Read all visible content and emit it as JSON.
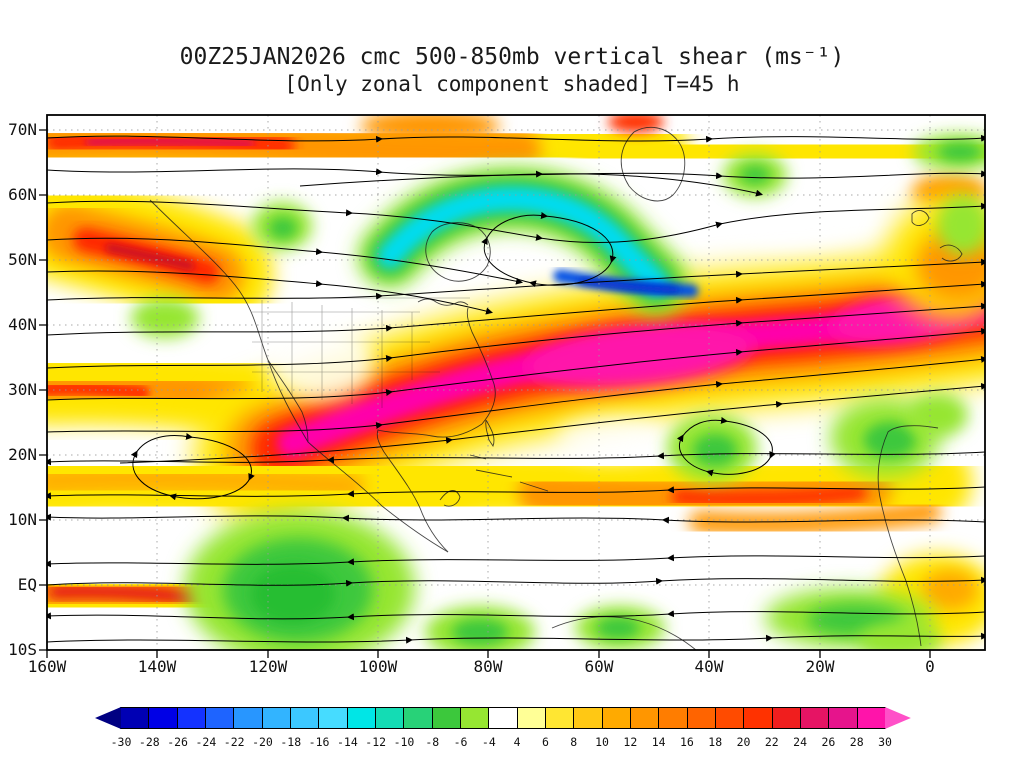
{
  "header": {
    "title": "00Z25JAN2026 cmc 500-850mb vertical shear (ms⁻¹)",
    "subtitle": "[Only zonal component shaded] T=45 h"
  },
  "axes": {
    "lat_ticks": [
      "70N",
      "60N",
      "50N",
      "40N",
      "30N",
      "20N",
      "10N",
      "EQ",
      "10S"
    ],
    "lon_ticks": [
      "160W",
      "140W",
      "120W",
      "100W",
      "80W",
      "60W",
      "40W",
      "20W",
      "0"
    ]
  },
  "colorbar": {
    "tick_labels": [
      "-30",
      "-28",
      "-26",
      "-24",
      "-22",
      "-20",
      "-18",
      "-16",
      "-14",
      "-12",
      "-10",
      "-8",
      "-6",
      "-4",
      "4",
      "6",
      "8",
      "10",
      "12",
      "14",
      "16",
      "18",
      "20",
      "22",
      "24",
      "26",
      "28",
      "30"
    ],
    "colors": [
      "#000082",
      "#0000b4",
      "#0000e6",
      "#1432ff",
      "#1e64ff",
      "#2896ff",
      "#32b4ff",
      "#3cc8ff",
      "#46dcff",
      "#00e6e6",
      "#14dcb4",
      "#28d278",
      "#3cc83c",
      "#96e632",
      "#ffffff",
      "#ffff96",
      "#ffe632",
      "#ffc814",
      "#ffaa00",
      "#ff9600",
      "#ff7d00",
      "#ff6400",
      "#ff4b00",
      "#ff3200",
      "#f01e1e",
      "#e61464",
      "#e6148c",
      "#ff14aa",
      "#ff50c8"
    ]
  },
  "chart_data": {
    "type": "heatmap",
    "title": "00Z25JAN2026 cmc 500-850mb vertical shear (ms⁻¹)",
    "subtitle": "[Only zonal component shaded] T=45 h",
    "model": "cmc",
    "valid_time": "00Z25JAN2026",
    "forecast_hour_h": 45,
    "layer": "500-850mb",
    "variable": "vertical shear (only zonal component shaded)",
    "units": "ms⁻¹",
    "lon_range": [
      "160W",
      "10E"
    ],
    "lat_range": [
      "10S",
      "72N"
    ],
    "shade_step": 2,
    "shade_min": -30,
    "shade_max": 30,
    "unshaded_band": [
      -4,
      4
    ],
    "overlays": [
      "streamlines with arrowheads",
      "coastlines",
      "dotted lat-lon grid"
    ],
    "features": [
      {
        "region": "Subtropical jet from Gulf of Mexico across Atlantic (25N-40N, 100W-0)",
        "shear_ms": "24 to >30"
      },
      {
        "region": "Arctic band along 70N (160W-110W)",
        "shear_ms": "18 to 28"
      },
      {
        "region": "Gulf of Alaska / BC coast streak near 55N (145W-125W)",
        "shear_ms": "16 to 26"
      },
      {
        "region": "North Pacific band at left edge (30N-40N near 160W)",
        "shear_ms": "10 to 20"
      },
      {
        "region": "Tropical Atlantic band (8N-18N, 70W-20W)",
        "shear_ms": "8 to 20"
      },
      {
        "region": "Equatorial band near 160W-130W",
        "shear_ms": "10 to 22"
      },
      {
        "region": "Eastern Canada / Labrador trough (48N-62N, 85W-50W)",
        "shear_ms": "-8 to -26, blue core near 52N 60W"
      },
      {
        "region": "East Pacific ITCZ blob (10S-8N, 115W-90W)",
        "shear_ms": "-4 to -10"
      },
      {
        "region": "Scattered weak negatives (E Atlantic, NW Europe, tropical S America)",
        "shear_ms": "-4 to -8"
      }
    ]
  }
}
